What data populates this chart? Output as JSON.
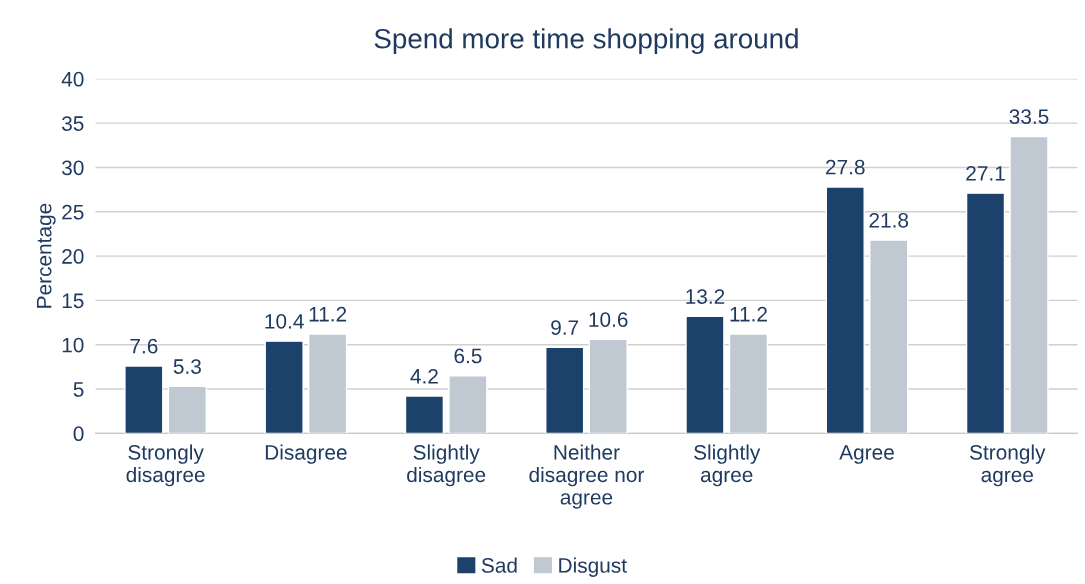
{
  "chart_data": {
    "type": "bar",
    "title": "Spend more time shopping around",
    "ylabel": "Percentage",
    "categories": [
      "Strongly\ndisagree",
      "Disagree",
      "Slightly\ndisagree",
      "Neither\ndisagree nor\nagree",
      "Slightly\nagree",
      "Agree",
      "Strongly\nagree"
    ],
    "series": [
      {
        "name": "Sad",
        "color": "#1c426b",
        "values": [
          7.6,
          10.4,
          4.2,
          9.7,
          13.2,
          27.8,
          27.1
        ]
      },
      {
        "name": "Disgust",
        "color": "#c0c8d2",
        "values": [
          5.3,
          11.2,
          6.5,
          10.6,
          11.2,
          21.8,
          33.5
        ]
      }
    ],
    "ylim": [
      0,
      40
    ],
    "yticks": [
      0,
      5,
      10,
      15,
      20,
      25,
      30,
      35,
      40
    ],
    "grid": "y",
    "data_labels": true,
    "legend": "bottom"
  }
}
